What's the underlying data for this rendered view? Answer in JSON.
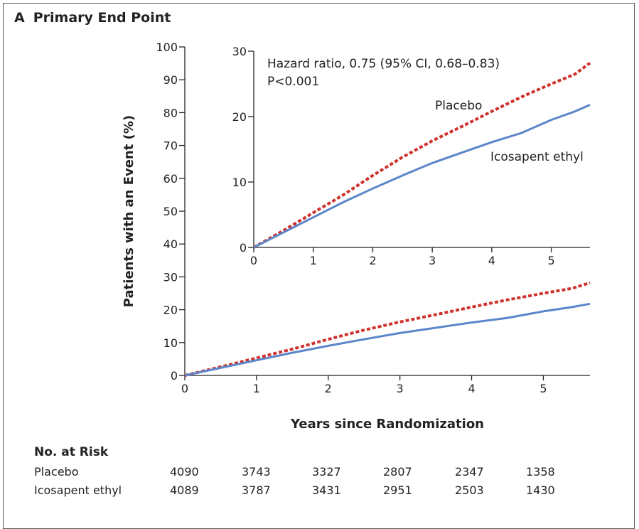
{
  "panel": {
    "letter": "A",
    "title": "Primary End Point"
  },
  "chart_data": [
    {
      "type": "line",
      "name": "main",
      "xlabel": "Years since Randomization",
      "ylabel": "Patients with an Event (%)",
      "xlim": [
        0,
        5.65
      ],
      "ylim": [
        0,
        100
      ],
      "xticks": [
        0,
        1,
        2,
        3,
        4,
        5
      ],
      "yticks": [
        0,
        10,
        20,
        30,
        40,
        50,
        60,
        70,
        80,
        90,
        100
      ],
      "series": [
        {
          "name": "Placebo",
          "color": "#d0312d",
          "style": "dotted",
          "x": [
            0,
            0.5,
            1,
            1.5,
            2,
            2.5,
            3,
            3.5,
            4,
            4.5,
            5,
            5.4,
            5.65
          ],
          "y": [
            0,
            2.6,
            5.3,
            8.0,
            11.0,
            13.8,
            16.3,
            18.5,
            20.8,
            23.0,
            25.0,
            26.5,
            28.2
          ]
        },
        {
          "name": "Icosapent ethyl",
          "color": "#5b86c9",
          "style": "solid",
          "x": [
            0,
            0.5,
            1,
            1.5,
            2,
            2.5,
            3,
            3.5,
            4,
            4.5,
            5,
            5.4,
            5.65
          ],
          "y": [
            0,
            2.3,
            4.6,
            6.9,
            9.0,
            11.0,
            12.9,
            14.5,
            16.1,
            17.5,
            19.5,
            20.8,
            21.8
          ]
        }
      ]
    },
    {
      "type": "line",
      "name": "inset",
      "xlim": [
        0,
        5.65
      ],
      "ylim": [
        0,
        30
      ],
      "xticks": [
        0,
        1,
        2,
        3,
        4,
        5
      ],
      "yticks": [
        0,
        10,
        20,
        30
      ],
      "annotations": [
        "Hazard ratio, 0.75 (95% CI, 0.68–0.83)",
        "P<0.001"
      ],
      "series_labels": [
        "Placebo",
        "Icosapent ethyl"
      ]
    }
  ],
  "risk_table": {
    "heading": "No. at Risk",
    "rows": [
      {
        "label": "Placebo",
        "values": [
          "4090",
          "3743",
          "3327",
          "2807",
          "2347",
          "1358"
        ]
      },
      {
        "label": "Icosapent ethyl",
        "values": [
          "4089",
          "3787",
          "3431",
          "2951",
          "2503",
          "1430"
        ]
      }
    ]
  }
}
